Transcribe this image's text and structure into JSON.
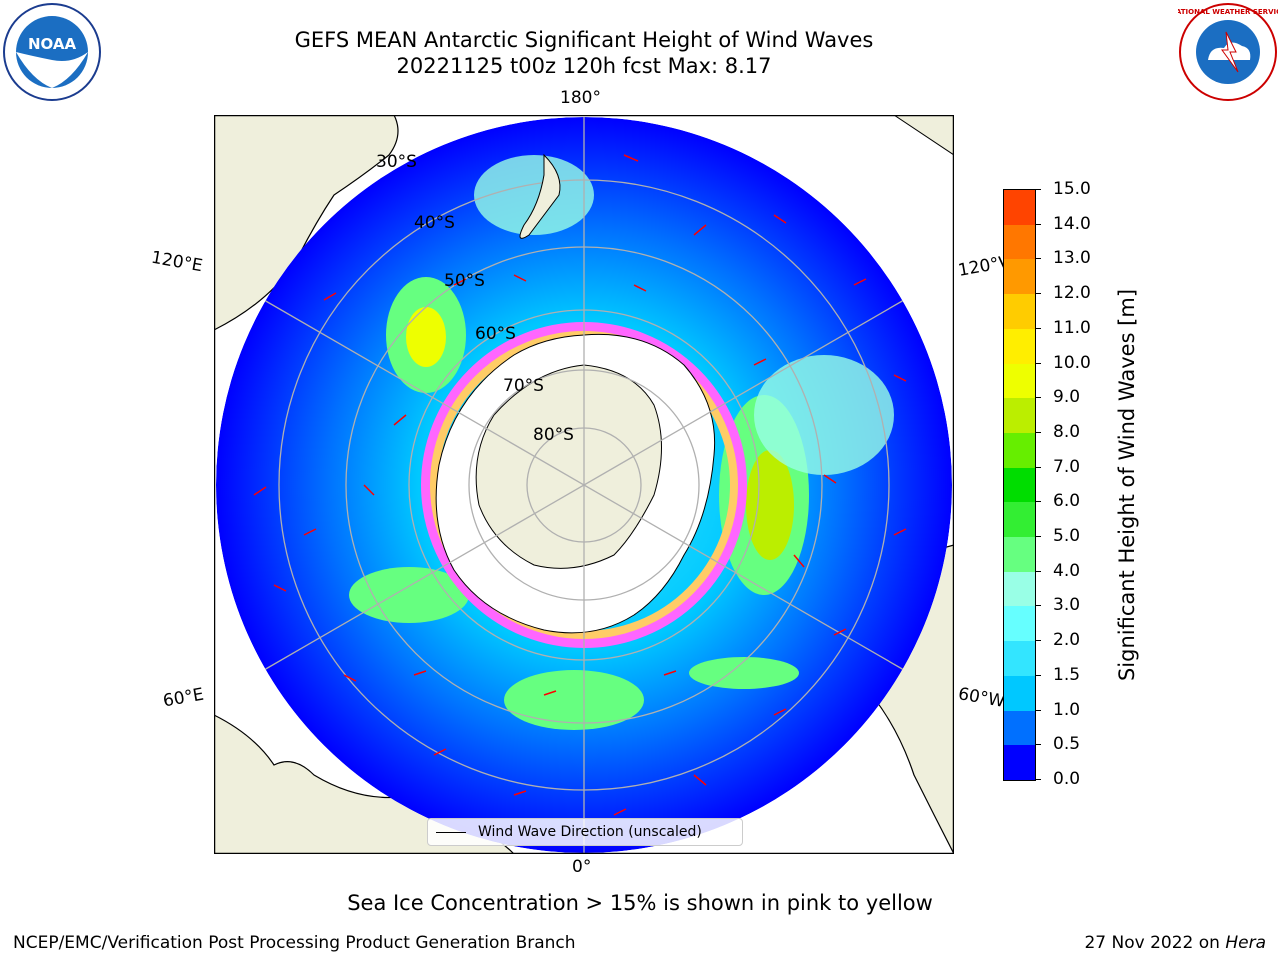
{
  "header": {
    "title_line1": "GEFS MEAN Antarctic Significant Height of Wind Waves",
    "title_line2": "20221125 t00z 120h fcst   Max: 8.17"
  },
  "logos": {
    "left": "noaa-logo",
    "left_text": "NOAA",
    "right": "national-weather-service-logo",
    "right_text": "NATIONAL WEATHER SERVICE"
  },
  "map": {
    "projection": "south-polar-stereographic",
    "longitude_labels": {
      "top": "180°",
      "bottom": "0°",
      "upper_left": "120°E",
      "upper_right": "120°W",
      "lower_left": "60°E",
      "lower_right": "60°W"
    },
    "latitude_labels": [
      "30°S",
      "40°S",
      "50°S",
      "60°S",
      "70°S",
      "80°S"
    ],
    "legend_label": "Wind Wave Direction (unscaled)",
    "colors": {
      "land": "#efefdc",
      "ice": "#ffffff",
      "arrows": "#ff0000",
      "graticule": "#b0b0b0"
    }
  },
  "colorbar": {
    "label": "Significant Height of Wind Waves [m]",
    "ticks": [
      "0.0",
      "0.5",
      "1.0",
      "1.5",
      "2.0",
      "3.0",
      "4.0",
      "5.0",
      "6.0",
      "7.0",
      "8.0",
      "9.0",
      "10.0",
      "11.0",
      "12.0",
      "13.0",
      "14.0",
      "15.0"
    ],
    "colors": [
      "#0000ff",
      "#0070ff",
      "#00c8ff",
      "#33e5ff",
      "#66ffff",
      "#99ffe6",
      "#66ff80",
      "#33ee33",
      "#00dd00",
      "#66ee00",
      "#bbee00",
      "#eeff00",
      "#ffee00",
      "#ffcc00",
      "#ff9900",
      "#ff7700",
      "#ff4400",
      "#ff0000"
    ]
  },
  "subtitle": "Sea Ice Concentration > 15% is shown in pink to yellow",
  "footer": {
    "left": "NCEP/EMC/Verification Post Processing Product Generation Branch",
    "right_date": "27 Nov 2022 on ",
    "right_host": "Hera"
  }
}
